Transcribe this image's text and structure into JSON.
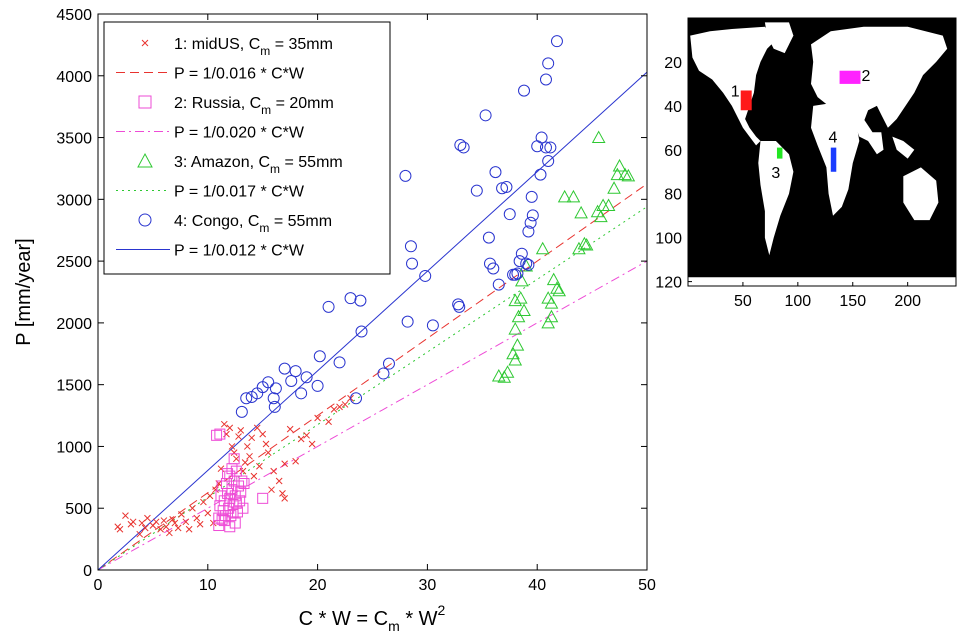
{
  "chart_data": [
    {
      "type": "scatter",
      "xlabel_base": "C * W = C",
      "xlabel_sub": "m",
      "xlabel_tail": " * W",
      "xlabel_sup": "2",
      "ylabel": "P [mm/year]",
      "xlim": [
        0,
        50
      ],
      "ylim": [
        0,
        4500
      ],
      "xticks": [
        0,
        10,
        20,
        30,
        40,
        50
      ],
      "yticks": [
        0,
        500,
        1000,
        1500,
        2000,
        2500,
        3000,
        3500,
        4000,
        4500
      ],
      "grid": false,
      "legend_position": "top-left",
      "legend": [
        {
          "kind": "marker",
          "marker": "x",
          "color": "#e8332f",
          "pre": "1: midUS, C",
          "sub": "m",
          "post": " = 35mm"
        },
        {
          "kind": "line",
          "dash": "dashed",
          "color": "#e8332f",
          "text": "P = 1/0.016 * C*W"
        },
        {
          "kind": "marker",
          "marker": "square",
          "color": "#ee4bd6",
          "pre": "2: Russia, C",
          "sub": "m",
          "post": " = 20mm"
        },
        {
          "kind": "line",
          "dash": "dashdot",
          "color": "#ee4bd6",
          "text": "P = 1/0.020 * C*W"
        },
        {
          "kind": "marker",
          "marker": "triangle",
          "color": "#2ec832",
          "pre": "3: Amazon, C",
          "sub": "m",
          "post": " = 55mm"
        },
        {
          "kind": "line",
          "dash": "dotted",
          "color": "#2ec832",
          "text": "P = 1/0.017 * C*W"
        },
        {
          "kind": "marker",
          "marker": "circle",
          "color": "#2a35cf",
          "pre": "4: Congo, C",
          "sub": "m",
          "post": " = 55mm"
        },
        {
          "kind": "line",
          "dash": "solid",
          "color": "#2a35cf",
          "text": "P = 1/0.012 * C*W"
        }
      ],
      "fit_lines": [
        {
          "name": "P = 1/0.016 * C*W",
          "slope": 62.5,
          "dash": "dashed",
          "color": "#e8332f"
        },
        {
          "name": "P = 1/0.020 * C*W",
          "slope": 50.0,
          "dash": "dashdot",
          "color": "#ee4bd6"
        },
        {
          "name": "P = 1/0.017 * C*W",
          "slope": 58.8,
          "dash": "dotted",
          "color": "#2ec832"
        },
        {
          "name": "P = 1/0.012 * C*W",
          "slope": 80.6,
          "dash": "solid",
          "color": "#2a35cf"
        }
      ],
      "series": [
        {
          "name": "1: midUS",
          "marker": "x",
          "color": "#e8332f",
          "points": [
            [
              1.8,
              350
            ],
            [
              2.0,
              330
            ],
            [
              2.5,
              440
            ],
            [
              3.0,
              370
            ],
            [
              3.2,
              390
            ],
            [
              3.8,
              290
            ],
            [
              4.0,
              380
            ],
            [
              4.3,
              340
            ],
            [
              4.5,
              420
            ],
            [
              5.0,
              360
            ],
            [
              5.3,
              390
            ],
            [
              5.7,
              330
            ],
            [
              6.0,
              400
            ],
            [
              6.2,
              350
            ],
            [
              6.5,
              300
            ],
            [
              6.8,
              410
            ],
            [
              7.0,
              380
            ],
            [
              7.3,
              340
            ],
            [
              7.6,
              450
            ],
            [
              8.0,
              390
            ],
            [
              8.3,
              330
            ],
            [
              8.6,
              500
            ],
            [
              9.0,
              420
            ],
            [
              9.3,
              370
            ],
            [
              9.6,
              550
            ],
            [
              10.0,
              460
            ],
            [
              10.2,
              600
            ],
            [
              10.5,
              380
            ],
            [
              10.7,
              650
            ],
            [
              11.0,
              700
            ],
            [
              11.2,
              820
            ],
            [
              11.5,
              1180
            ],
            [
              11.7,
              1100
            ],
            [
              12.0,
              1150
            ],
            [
              12.2,
              1000
            ],
            [
              12.4,
              950
            ],
            [
              12.6,
              900
            ],
            [
              12.8,
              1080
            ],
            [
              13.0,
              1130
            ],
            [
              13.2,
              800
            ],
            [
              13.4,
              870
            ],
            [
              13.6,
              1000
            ],
            [
              13.8,
              920
            ],
            [
              14.0,
              1070
            ],
            [
              14.2,
              760
            ],
            [
              14.5,
              1150
            ],
            [
              14.7,
              840
            ],
            [
              15.0,
              1100
            ],
            [
              15.3,
              1020
            ],
            [
              15.5,
              950
            ],
            [
              15.8,
              650
            ],
            [
              16.0,
              800
            ],
            [
              16.5,
              720
            ],
            [
              17.0,
              860
            ],
            [
              17.5,
              1140
            ],
            [
              18.0,
              880
            ],
            [
              18.5,
              1060
            ],
            [
              19.0,
              1090
            ],
            [
              19.5,
              1020
            ],
            [
              20.0,
              1230
            ],
            [
              21.0,
              1200
            ],
            [
              21.5,
              1300
            ],
            [
              22.0,
              1320
            ],
            [
              22.5,
              1340
            ],
            [
              23.0,
              1390
            ],
            [
              17.0,
              580
            ],
            [
              16.8,
              620
            ]
          ]
        },
        {
          "name": "2: Russia",
          "marker": "square",
          "color": "#ee4bd6",
          "points": [
            [
              10.8,
              1090
            ],
            [
              11.1,
              1100
            ],
            [
              11.0,
              420
            ],
            [
              11.1,
              520
            ],
            [
              11.2,
              600
            ],
            [
              11.3,
              680
            ],
            [
              11.4,
              480
            ],
            [
              11.5,
              560
            ],
            [
              11.6,
              440
            ],
            [
              11.7,
              700
            ],
            [
              11.8,
              620
            ],
            [
              11.9,
              500
            ],
            [
              12.0,
              760
            ],
            [
              12.0,
              580
            ],
            [
              12.1,
              440
            ],
            [
              12.2,
              650
            ],
            [
              12.3,
              530
            ],
            [
              12.4,
              720
            ],
            [
              12.5,
              380
            ],
            [
              12.5,
              600
            ],
            [
              12.6,
              800
            ],
            [
              12.7,
              470
            ],
            [
              12.8,
              680
            ],
            [
              12.9,
              560
            ],
            [
              13.0,
              630
            ],
            [
              13.1,
              720
            ],
            [
              13.2,
              500
            ],
            [
              11.0,
              360
            ],
            [
              11.5,
              400
            ],
            [
              12.0,
              350
            ],
            [
              12.3,
              470
            ],
            [
              13.3,
              700
            ],
            [
              15.0,
              580
            ],
            [
              12.2,
              820
            ],
            [
              12.4,
              900
            ],
            [
              11.8,
              780
            ],
            [
              12.6,
              540
            ],
            [
              11.3,
              410
            ]
          ]
        },
        {
          "name": "3: Amazon",
          "marker": "triangle",
          "color": "#2ec832",
          "points": [
            [
              36.5,
              1570
            ],
            [
              37.0,
              1560
            ],
            [
              37.3,
              1600
            ],
            [
              37.8,
              1750
            ],
            [
              38.0,
              1700
            ],
            [
              38.2,
              1820
            ],
            [
              38.0,
              1950
            ],
            [
              38.3,
              2050
            ],
            [
              38.0,
              2180
            ],
            [
              38.5,
              2200
            ],
            [
              38.8,
              2100
            ],
            [
              38.6,
              2340
            ],
            [
              39.0,
              2460
            ],
            [
              40.5,
              2600
            ],
            [
              41.0,
              2200
            ],
            [
              41.0,
              2000
            ],
            [
              41.3,
              2050
            ],
            [
              41.3,
              2160
            ],
            [
              41.5,
              2350
            ],
            [
              41.8,
              2280
            ],
            [
              42.0,
              2260
            ],
            [
              42.5,
              3020
            ],
            [
              43.3,
              3020
            ],
            [
              44.0,
              2890
            ],
            [
              43.8,
              2600
            ],
            [
              44.3,
              2640
            ],
            [
              44.5,
              2630
            ],
            [
              45.5,
              2900
            ],
            [
              45.8,
              2860
            ],
            [
              46.0,
              2950
            ],
            [
              46.5,
              2950
            ],
            [
              47.0,
              3090
            ],
            [
              47.3,
              3200
            ],
            [
              47.5,
              3270
            ],
            [
              48.0,
              3200
            ],
            [
              48.3,
              3190
            ],
            [
              45.6,
              3500
            ]
          ]
        },
        {
          "name": "4: Congo",
          "marker": "circle",
          "color": "#2a35cf",
          "points": [
            [
              13.1,
              1280
            ],
            [
              13.5,
              1390
            ],
            [
              14.0,
              1400
            ],
            [
              14.5,
              1430
            ],
            [
              15.0,
              1480
            ],
            [
              15.5,
              1520
            ],
            [
              16.0,
              1390
            ],
            [
              16.1,
              1320
            ],
            [
              16.2,
              1470
            ],
            [
              17.0,
              1630
            ],
            [
              17.6,
              1530
            ],
            [
              18.0,
              1610
            ],
            [
              18.5,
              1430
            ],
            [
              19.0,
              1560
            ],
            [
              20.0,
              1490
            ],
            [
              20.2,
              1730
            ],
            [
              21.0,
              2130
            ],
            [
              22.0,
              1680
            ],
            [
              23.0,
              2200
            ],
            [
              23.5,
              1390
            ],
            [
              23.9,
              2180
            ],
            [
              24.0,
              1930
            ],
            [
              26.0,
              1590
            ],
            [
              26.5,
              1670
            ],
            [
              28.0,
              3190
            ],
            [
              28.2,
              2010
            ],
            [
              28.5,
              2620
            ],
            [
              28.6,
              2480
            ],
            [
              29.8,
              2380
            ],
            [
              30.5,
              1980
            ],
            [
              32.8,
              2150
            ],
            [
              32.9,
              2130
            ],
            [
              33.0,
              3440
            ],
            [
              33.3,
              3420
            ],
            [
              34.5,
              3070
            ],
            [
              35.3,
              3680
            ],
            [
              35.6,
              2690
            ],
            [
              35.7,
              2480
            ],
            [
              36.0,
              2440
            ],
            [
              36.2,
              3220
            ],
            [
              36.5,
              2310
            ],
            [
              36.8,
              3090
            ],
            [
              37.2,
              3100
            ],
            [
              37.5,
              2880
            ],
            [
              37.8,
              2390
            ],
            [
              38.0,
              2390
            ],
            [
              38.2,
              2400
            ],
            [
              38.4,
              2500
            ],
            [
              38.6,
              2560
            ],
            [
              38.8,
              3880
            ],
            [
              39.0,
              2480
            ],
            [
              39.2,
              2470
            ],
            [
              39.2,
              2740
            ],
            [
              39.4,
              2810
            ],
            [
              39.6,
              2870
            ],
            [
              39.5,
              3020
            ],
            [
              40.0,
              3430
            ],
            [
              40.3,
              3200
            ],
            [
              40.4,
              3500
            ],
            [
              40.8,
              3420
            ],
            [
              41.0,
              3310
            ],
            [
              40.8,
              3970
            ],
            [
              41.0,
              4100
            ],
            [
              41.2,
              3420
            ],
            [
              41.8,
              4280
            ]
          ]
        }
      ]
    },
    {
      "type": "heatmap",
      "description_axes": "map",
      "xticks": [
        50,
        100,
        150,
        200
      ],
      "yticks": [
        20,
        40,
        60,
        80,
        100,
        120
      ],
      "xlim": [
        0,
        244
      ],
      "ylim": [
        0,
        122
      ],
      "background_color": "#000000",
      "land_color": "#ffffff",
      "regions": [
        {
          "label": "1",
          "color": "#ff1a1a",
          "x": [
            48,
            58
          ],
          "y": [
            33,
            42
          ],
          "label_at": [
            43,
            33
          ]
        },
        {
          "label": "2",
          "color": "#ff22ff",
          "x": [
            138,
            157
          ],
          "y": [
            24,
            30
          ],
          "label_at": [
            162,
            26
          ]
        },
        {
          "label": "3",
          "color": "#22e622",
          "x": [
            81,
            86
          ],
          "y": [
            59,
            64
          ],
          "label_at": [
            80,
            70
          ]
        },
        {
          "label": "4",
          "color": "#1a3cff",
          "x": [
            130,
            135
          ],
          "y": [
            59,
            70
          ],
          "label_at": [
            132,
            54
          ]
        }
      ]
    }
  ]
}
